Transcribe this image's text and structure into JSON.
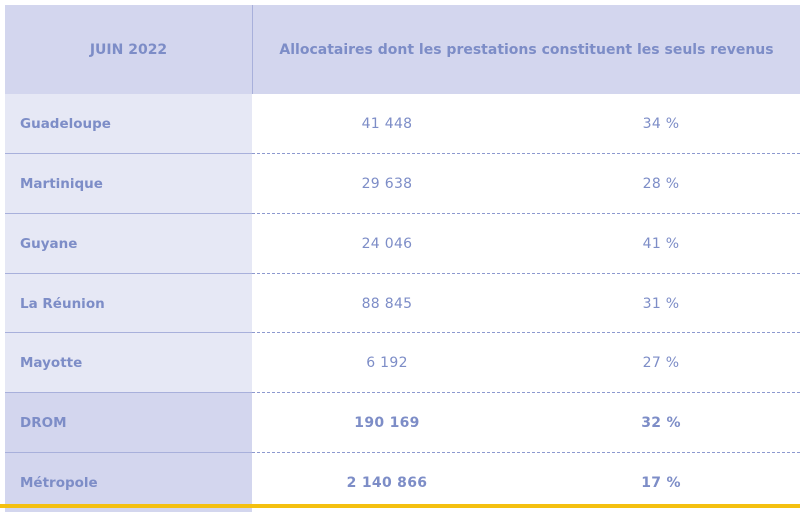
{
  "header": {
    "col1": "JUIN 2022",
    "col2": "Allocataires dont les prestations constituent les seuls revenus"
  },
  "rows": [
    {
      "label": "Guadeloupe",
      "count": "41 448",
      "pct": "34 %"
    },
    {
      "label": "Martinique",
      "count": "29 638",
      "pct": "28 %"
    },
    {
      "label": "Guyane",
      "count": "24 046",
      "pct": "41 %"
    },
    {
      "label": "La Réunion",
      "count": "88 845",
      "pct": "31 %"
    },
    {
      "label": "Mayotte",
      "count": "6 192",
      "pct": "27 %"
    },
    {
      "label": "DROM",
      "count": "190 169",
      "pct": "32 %"
    },
    {
      "label": "Métropole",
      "count": "2 140 866",
      "pct": "17 %"
    }
  ],
  "colors": {
    "header_bg": "#d3d6ee",
    "label_bg": "#e6e8f5",
    "text": "#7d8dc7",
    "accent_bar": "#f4c010"
  }
}
